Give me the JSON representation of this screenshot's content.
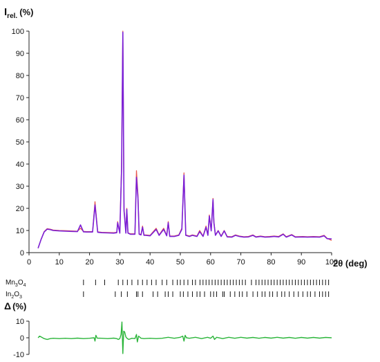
{
  "chart_data": [
    {
      "type": "line",
      "title": "",
      "ylabel": {
        "main": "I",
        "sub": "rel.",
        "unit": "(%)"
      },
      "xlabel": "2θ (deg)",
      "xlim": [
        0,
        100
      ],
      "ylim": [
        0,
        100
      ],
      "xticks": [
        0,
        10,
        20,
        30,
        40,
        50,
        60,
        70,
        80,
        90,
        100
      ],
      "yticks": [
        0,
        10,
        20,
        30,
        40,
        50,
        60,
        70,
        80,
        90,
        100
      ],
      "grid": false,
      "series": [
        {
          "color": "#e8584e",
          "x": [
            3,
            4,
            5,
            6,
            7,
            8,
            10,
            12,
            14,
            16,
            17,
            18,
            19,
            21,
            21.8,
            22.7,
            24,
            26,
            28,
            29,
            29.3,
            30,
            30.6,
            31.0,
            31.4,
            32,
            32.3,
            32.7,
            33.5,
            35,
            35.5,
            36.0,
            36.4,
            37,
            37.5,
            38.0,
            38.5,
            40,
            42.0,
            43,
            44.5,
            45.5,
            46.0,
            46.5,
            48,
            49.5,
            50.5,
            51.2,
            51.8,
            53,
            54,
            55.5,
            56.4,
            57.5,
            58.5,
            59.1,
            59.6,
            60.2,
            60.8,
            61.1,
            61.6,
            62.5,
            63.5,
            64.5,
            65.5,
            67,
            68.2,
            69.5,
            71,
            72.5,
            74.0,
            75,
            76.5,
            78,
            79.5,
            81,
            82.5,
            84.0,
            85,
            86.8,
            88,
            90.5,
            92,
            94,
            96,
            97.5,
            98.5,
            100
          ],
          "y": [
            2,
            6,
            9.5,
            10.8,
            10.6,
            10.2,
            10,
            9.9,
            9.8,
            9.7,
            11,
            9.6,
            9.5,
            9.5,
            23,
            9.4,
            9.2,
            9.1,
            9,
            9.2,
            14,
            9,
            40,
            100,
            20,
            9,
            20,
            9,
            8.5,
            8.5,
            37,
            26,
            8.5,
            8.2,
            12,
            8,
            8,
            7.8,
            11,
            8,
            11,
            7.8,
            14,
            7.5,
            7.5,
            8,
            11,
            36,
            8,
            7.5,
            8,
            7.5,
            10,
            7.5,
            12,
            8,
            17,
            10,
            24.5,
            14,
            8,
            10,
            7.5,
            10,
            7.3,
            7.2,
            8,
            7.5,
            7.2,
            7.3,
            8,
            7.2,
            7.5,
            7.2,
            7.3,
            7.5,
            7.3,
            8.5,
            7.2,
            8.2,
            7.2,
            7.3,
            7.2,
            7.3,
            7.2,
            7.8,
            6.5,
            5.5
          ]
        },
        {
          "color": "#7a1fd6",
          "x": [
            3,
            4,
            5,
            6,
            7,
            8,
            10,
            12,
            14,
            16,
            17,
            18,
            19,
            21,
            21.8,
            22.7,
            24,
            26,
            28,
            29,
            29.3,
            30,
            30.6,
            31.0,
            31.4,
            32,
            32.3,
            32.7,
            33.5,
            35,
            35.5,
            36.0,
            36.4,
            37,
            37.5,
            38.0,
            38.5,
            40,
            42.0,
            43,
            44.5,
            45.5,
            46.0,
            46.5,
            48,
            49.5,
            50.5,
            51.2,
            51.8,
            53,
            54,
            55.5,
            56.4,
            57.5,
            58.5,
            59.1,
            59.6,
            60.2,
            60.8,
            61.1,
            61.6,
            62.5,
            63.5,
            64.5,
            65.5,
            67,
            68.2,
            69.5,
            71,
            72.5,
            74.0,
            75,
            76.5,
            78,
            79.5,
            81,
            82.5,
            84.0,
            85,
            86.8,
            88,
            90.5,
            92,
            94,
            96,
            97.5,
            98.5,
            100
          ],
          "y": [
            2,
            6,
            9.3,
            10.6,
            10.4,
            10,
            9.8,
            9.7,
            9.6,
            9.5,
            12.5,
            9.4,
            9.3,
            9.3,
            21.5,
            9.2,
            9,
            8.9,
            8.8,
            9,
            13.5,
            8.8,
            38,
            99.5,
            19,
            8.8,
            19.5,
            8.8,
            8.3,
            8.3,
            34,
            24.5,
            8.3,
            8,
            11.5,
            7.8,
            7.8,
            7.6,
            10.5,
            7.8,
            10.5,
            7.6,
            13.5,
            7.3,
            7.3,
            7.8,
            10.5,
            35,
            7.8,
            7.3,
            7.8,
            7.3,
            9.5,
            7.3,
            11.5,
            7.8,
            16.5,
            9.8,
            24,
            13.5,
            7.8,
            9.8,
            7.3,
            9.8,
            7.1,
            7,
            7.8,
            7.3,
            7,
            7.1,
            7.8,
            7,
            7.3,
            7,
            7.1,
            7.3,
            7.1,
            8.3,
            7,
            8,
            7,
            7.1,
            7,
            7.1,
            7,
            7.6,
            6.3,
            6.2
          ]
        }
      ]
    },
    {
      "type": "scatter",
      "title": "",
      "subtype": "reflection-ticks",
      "xlim": [
        0,
        100
      ],
      "series": [
        {
          "name": "Mn3O4",
          "label_main": "Mn",
          "label_sub1": "3",
          "label_mid": "O",
          "label_sub2": "4",
          "x": [
            18,
            22,
            25,
            29.5,
            31,
            32.5,
            34,
            36,
            37.5,
            39,
            40.5,
            42,
            44,
            45.5,
            47.5,
            49,
            50,
            51.2,
            52.5,
            54,
            55,
            56.5,
            57.5,
            58.5,
            59.5,
            60.5,
            61.5,
            62.5,
            63.5,
            64.5,
            65.5,
            66.5,
            67.5,
            68.5,
            69.5,
            70.5,
            71.5,
            73.5,
            75,
            76,
            77,
            78,
            79,
            80,
            81,
            82,
            83,
            84,
            85,
            86,
            87,
            88,
            89,
            90,
            91,
            92,
            93,
            94,
            95,
            96,
            97,
            98,
            99
          ]
        },
        {
          "name": "In2O3",
          "label_main": "In",
          "label_sub1": "2",
          "label_mid": "O",
          "label_sub2": "3",
          "x": [
            18,
            28.5,
            30.5,
            32.5,
            35.5,
            36,
            37.5,
            41,
            42.5,
            45,
            46,
            47.5,
            50,
            51,
            52.5,
            54,
            55.5,
            56.5,
            58,
            60,
            61,
            62,
            64,
            64.5,
            66.5,
            68,
            69.5,
            70.5,
            72,
            74,
            75.5,
            77,
            78,
            79.5,
            80.5,
            82,
            83.5,
            84.5,
            86,
            87.5,
            89,
            90.5,
            92,
            93,
            94.5,
            96,
            97,
            98,
            99
          ]
        }
      ]
    },
    {
      "type": "line",
      "title": "",
      "ylabel": {
        "main": "Δ",
        "unit": "(%)"
      },
      "xlim": [
        0,
        100
      ],
      "ylim": [
        -10,
        10
      ],
      "yticks": [
        10,
        0,
        -10
      ],
      "grid": false,
      "series": [
        {
          "color": "#2bb53a",
          "x": [
            3,
            3.5,
            4,
            5,
            6,
            7,
            8,
            10,
            12,
            14,
            16,
            18,
            20,
            21.5,
            21.8,
            22.1,
            22.5,
            24,
            26,
            28,
            29,
            29.5,
            30,
            30.4,
            30.7,
            31.0,
            31.3,
            31.6,
            32,
            32.5,
            33,
            34,
            35,
            35.5,
            35.8,
            36.2,
            37,
            38,
            40,
            42,
            44,
            46,
            48,
            50,
            50.8,
            51.2,
            51.6,
            52,
            53,
            55,
            57,
            59,
            60,
            60.8,
            61.3,
            62,
            64,
            66,
            68,
            70,
            72,
            74,
            76,
            78,
            80,
            82,
            84,
            86,
            88,
            90,
            92,
            94,
            96,
            98,
            100
          ],
          "y": [
            0,
            1,
            0.5,
            -0.5,
            -1,
            -0.5,
            -0.3,
            -0.5,
            -0.3,
            -0.5,
            -0.2,
            -0.5,
            -0.3,
            0,
            -2,
            1.5,
            -0.2,
            -0.3,
            -0.5,
            -0.2,
            -0.5,
            -1,
            -0.5,
            2,
            9.5,
            -9.5,
            4,
            3.5,
            0.5,
            -0.5,
            -1,
            -0.3,
            -0.5,
            2,
            -2.5,
            1,
            -0.3,
            -0.5,
            -0.3,
            -0.5,
            -0.3,
            0.3,
            -0.3,
            0.3,
            1,
            -2,
            1.5,
            0,
            -0.3,
            0.3,
            -0.5,
            0.3,
            -0.3,
            1,
            -1,
            0.3,
            -0.5,
            0.3,
            -0.3,
            0.3,
            -0.2,
            0.2,
            -0.3,
            0.2,
            -0.2,
            0.3,
            -0.2,
            0.2,
            -0.3,
            0.2,
            -0.2,
            0.2,
            -0.2,
            0.2,
            0
          ]
        }
      ]
    }
  ]
}
